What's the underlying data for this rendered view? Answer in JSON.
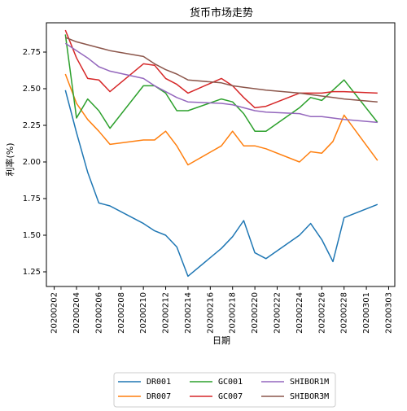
{
  "chart_data": {
    "type": "line",
    "title": "货币市场走势",
    "xlabel": "日期",
    "ylabel": "利率(%)",
    "ylim": [
      1.15,
      2.95
    ],
    "x_ticks": [
      "20200202",
      "20200204",
      "20200206",
      "20200208",
      "20200210",
      "20200212",
      "20200214",
      "20200216",
      "20200218",
      "20200220",
      "20200222",
      "20200224",
      "20200226",
      "20200228",
      "20200301",
      "20200303"
    ],
    "y_ticks": [
      "1.25",
      "1.50",
      "1.75",
      "2.00",
      "2.25",
      "2.50",
      "2.75"
    ],
    "legend_position": "bottom",
    "x": [
      "20200203",
      "20200204",
      "20200205",
      "20200206",
      "20200207",
      "20200210",
      "20200211",
      "20200212",
      "20200213",
      "20200214",
      "20200217",
      "20200218",
      "20200219",
      "20200220",
      "20200221",
      "20200224",
      "20200225",
      "20200226",
      "20200227",
      "20200228",
      "20200302"
    ],
    "series": [
      {
        "name": "DR001",
        "color": "#1f77b4",
        "values": [
          2.49,
          2.2,
          1.93,
          1.72,
          1.7,
          1.58,
          1.53,
          1.5,
          1.42,
          1.22,
          1.41,
          1.49,
          1.6,
          1.38,
          1.34,
          1.5,
          1.58,
          1.47,
          1.32,
          1.62,
          1.71
        ]
      },
      {
        "name": "DR007",
        "color": "#ff7f0e",
        "values": [
          2.6,
          2.4,
          2.29,
          2.21,
          2.12,
          2.15,
          2.15,
          2.21,
          2.11,
          1.98,
          2.11,
          2.21,
          2.11,
          2.11,
          2.09,
          2.0,
          2.07,
          2.06,
          2.14,
          2.32,
          2.01
        ]
      },
      {
        "name": "GC001",
        "color": "#2ca02c",
        "values": [
          2.87,
          2.3,
          2.43,
          2.35,
          2.23,
          2.52,
          2.52,
          2.47,
          2.35,
          2.35,
          2.43,
          2.41,
          2.33,
          2.21,
          2.21,
          2.37,
          2.44,
          2.42,
          2.49,
          2.56,
          2.27
        ]
      },
      {
        "name": "GC007",
        "color": "#d62728",
        "values": [
          2.9,
          2.71,
          2.57,
          2.56,
          2.48,
          2.67,
          2.66,
          2.57,
          2.53,
          2.47,
          2.57,
          2.52,
          2.44,
          2.37,
          2.38,
          2.47,
          2.47,
          2.47,
          2.48,
          2.48,
          2.47
        ]
      },
      {
        "name": "SHIBOR1M",
        "color": "#9467bd",
        "values": [
          2.81,
          2.76,
          2.71,
          2.65,
          2.62,
          2.57,
          2.52,
          2.48,
          2.44,
          2.41,
          2.4,
          2.39,
          2.37,
          2.35,
          2.34,
          2.33,
          2.31,
          2.31,
          2.3,
          2.29,
          2.27
        ]
      },
      {
        "name": "SHIBOR3M",
        "color": "#8c564b",
        "values": [
          2.85,
          2.82,
          2.8,
          2.78,
          2.76,
          2.72,
          2.67,
          2.63,
          2.6,
          2.56,
          2.54,
          2.52,
          2.51,
          2.5,
          2.49,
          2.47,
          2.46,
          2.45,
          2.44,
          2.43,
          2.41
        ]
      }
    ]
  }
}
